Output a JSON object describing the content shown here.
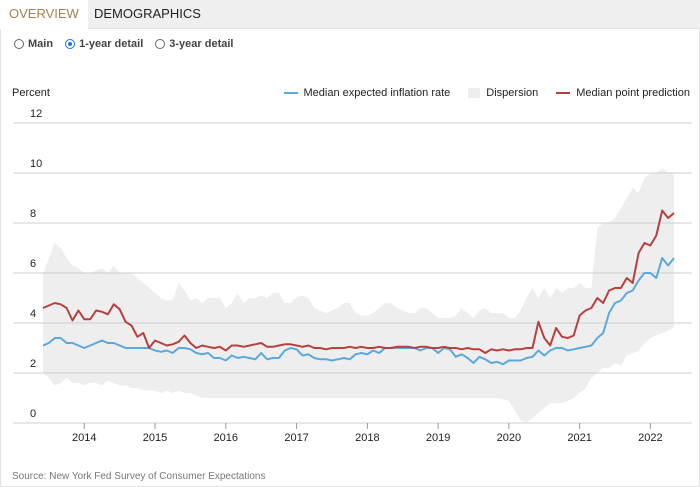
{
  "tabs": [
    {
      "label": "OVERVIEW",
      "active": true
    },
    {
      "label": "DEMOGRAPHICS",
      "active": false
    }
  ],
  "radios": [
    {
      "label": "Main",
      "checked": false
    },
    {
      "label": "1-year detail",
      "checked": true
    },
    {
      "label": "3-year detail",
      "checked": false
    }
  ],
  "source": "Source: New York Fed Survey of Consumer Expectations",
  "colors": {
    "median": "#5aa9dc",
    "point": "#b5413f",
    "band": "#eeeeee",
    "grid": "#cfcfcf",
    "accent": "#a08252"
  },
  "chart_data": {
    "type": "line",
    "ylabel": "Percent",
    "ylim": [
      0,
      12
    ],
    "yticks": [
      "0",
      "2",
      "4",
      "6",
      "8",
      "10",
      "12"
    ],
    "xticks": [
      "2014",
      "2015",
      "2016",
      "2017",
      "2018",
      "2019",
      "2020",
      "2021",
      "2022"
    ],
    "x_start": "2013-06",
    "x_end": "2022-05",
    "frequency": "monthly",
    "grid": true,
    "legend_position": "top-right",
    "legend": [
      "Median expected inflation rate",
      "Dispersion",
      "Median point prediction"
    ],
    "series": [
      {
        "name": "Median expected inflation rate",
        "values": [
          3.1,
          3.2,
          3.4,
          3.4,
          3.2,
          3.2,
          3.1,
          3.0,
          3.1,
          3.2,
          3.3,
          3.2,
          3.2,
          3.1,
          3.0,
          3.0,
          3.0,
          3.0,
          3.0,
          2.9,
          2.85,
          2.9,
          2.8,
          3.0,
          3.0,
          2.95,
          2.8,
          2.75,
          2.8,
          2.6,
          2.6,
          2.5,
          2.7,
          2.6,
          2.65,
          2.6,
          2.55,
          2.8,
          2.55,
          2.6,
          2.6,
          2.9,
          3.0,
          2.95,
          2.7,
          2.75,
          2.6,
          2.55,
          2.55,
          2.5,
          2.55,
          2.6,
          2.55,
          2.75,
          2.8,
          2.75,
          2.9,
          2.8,
          3.0,
          3.0,
          3.0,
          3.0,
          3.0,
          3.0,
          2.9,
          3.0,
          3.0,
          2.8,
          3.0,
          2.95,
          2.65,
          2.75,
          2.6,
          2.4,
          2.65,
          2.55,
          2.4,
          2.45,
          2.35,
          2.5,
          2.5,
          2.5,
          2.6,
          2.65,
          2.9,
          2.7,
          2.9,
          3.0,
          3.0,
          2.9,
          2.95,
          3.0,
          3.05,
          3.1,
          3.4,
          3.6,
          4.4,
          4.8,
          4.9,
          5.2,
          5.3,
          5.7,
          6.0,
          6.0,
          5.8,
          6.6,
          6.3,
          6.6
        ]
      },
      {
        "name": "Median point prediction",
        "values": [
          4.6,
          4.7,
          4.8,
          4.75,
          4.6,
          4.1,
          4.5,
          4.15,
          4.15,
          4.5,
          4.45,
          4.35,
          4.75,
          4.55,
          4.05,
          3.9,
          3.45,
          3.6,
          3.0,
          3.3,
          3.2,
          3.1,
          3.15,
          3.25,
          3.5,
          3.2,
          3.0,
          3.1,
          3.05,
          3.0,
          3.05,
          2.9,
          3.1,
          3.1,
          3.05,
          3.1,
          3.15,
          3.2,
          3.05,
          3.05,
          3.1,
          3.15,
          3.15,
          3.1,
          3.05,
          3.1,
          3.0,
          3.0,
          2.95,
          3.0,
          3.0,
          3.0,
          3.05,
          3.0,
          3.05,
          3.0,
          3.0,
          3.05,
          3.0,
          3.0,
          3.05,
          3.05,
          3.05,
          3.0,
          3.05,
          3.05,
          3.0,
          3.0,
          3.05,
          3.0,
          3.0,
          2.95,
          3.0,
          2.95,
          2.95,
          2.8,
          2.95,
          2.9,
          2.95,
          2.9,
          2.95,
          2.95,
          3.0,
          3.0,
          4.05,
          3.4,
          3.1,
          3.8,
          3.45,
          3.4,
          3.5,
          4.3,
          4.5,
          4.6,
          5.0,
          4.8,
          5.3,
          5.4,
          5.4,
          5.8,
          5.6,
          6.8,
          7.2,
          7.1,
          7.5,
          8.5,
          8.2,
          8.4
        ]
      },
      {
        "name": "Dispersion",
        "type": "band",
        "high": [
          6.0,
          6.6,
          7.2,
          7.0,
          6.6,
          6.3,
          6.2,
          6.0,
          6.0,
          6.1,
          6.2,
          6.0,
          6.3,
          6.0,
          6.0,
          6.0,
          5.8,
          5.6,
          5.4,
          5.2,
          5.0,
          4.9,
          4.9,
          5.6,
          5.3,
          4.9,
          5.0,
          4.8,
          5.0,
          5.0,
          5.0,
          4.6,
          4.8,
          5.2,
          4.8,
          5.0,
          5.0,
          5.1,
          5.0,
          5.2,
          5.2,
          4.8,
          4.8,
          5.0,
          5.1,
          5.0,
          4.6,
          4.5,
          4.4,
          4.5,
          4.6,
          4.8,
          4.8,
          4.4,
          4.3,
          4.3,
          4.4,
          4.6,
          4.8,
          4.8,
          4.6,
          4.5,
          4.4,
          4.4,
          4.6,
          4.6,
          4.4,
          4.2,
          4.2,
          4.2,
          4.3,
          4.6,
          4.4,
          4.2,
          4.5,
          4.6,
          4.4,
          4.4,
          4.4,
          4.2,
          4.2,
          4.5,
          5.0,
          5.4,
          5.0,
          5.4,
          5.0,
          5.4,
          5.2,
          5.4,
          5.4,
          5.6,
          5.4,
          5.4,
          7.8,
          8.0,
          8.0,
          8.2,
          8.6,
          9.0,
          9.4,
          9.2,
          9.8,
          10.0,
          10.0,
          10.2,
          10.0,
          10.0
        ],
        "low": [
          2.0,
          1.8,
          1.5,
          1.6,
          1.8,
          1.6,
          1.6,
          1.5,
          1.6,
          1.6,
          1.5,
          1.7,
          1.6,
          1.5,
          1.5,
          1.4,
          1.4,
          1.3,
          1.3,
          1.3,
          1.2,
          1.3,
          1.2,
          1.3,
          1.2,
          1.2,
          1.1,
          1.0,
          1.0,
          1.0,
          1.0,
          1.0,
          1.0,
          1.0,
          1.0,
          1.0,
          1.0,
          1.0,
          1.0,
          1.0,
          1.0,
          1.0,
          1.0,
          1.0,
          1.0,
          1.0,
          1.0,
          1.0,
          1.0,
          1.0,
          1.0,
          1.0,
          1.0,
          1.0,
          1.0,
          1.0,
          1.0,
          1.0,
          1.0,
          1.0,
          1.0,
          1.0,
          1.0,
          1.0,
          1.0,
          1.0,
          1.0,
          1.0,
          1.0,
          1.0,
          1.0,
          1.0,
          1.0,
          1.0,
          1.0,
          1.0,
          1.0,
          1.0,
          0.95,
          0.9,
          0.5,
          0.1,
          0.0,
          0.2,
          0.4,
          0.6,
          0.8,
          0.8,
          0.8,
          0.9,
          1.0,
          1.2,
          1.4,
          1.8,
          2.0,
          2.2,
          2.2,
          2.4,
          2.3,
          2.7,
          2.8,
          2.9,
          3.2,
          3.4,
          3.5,
          3.6,
          3.7,
          3.8
        ]
      }
    ]
  }
}
